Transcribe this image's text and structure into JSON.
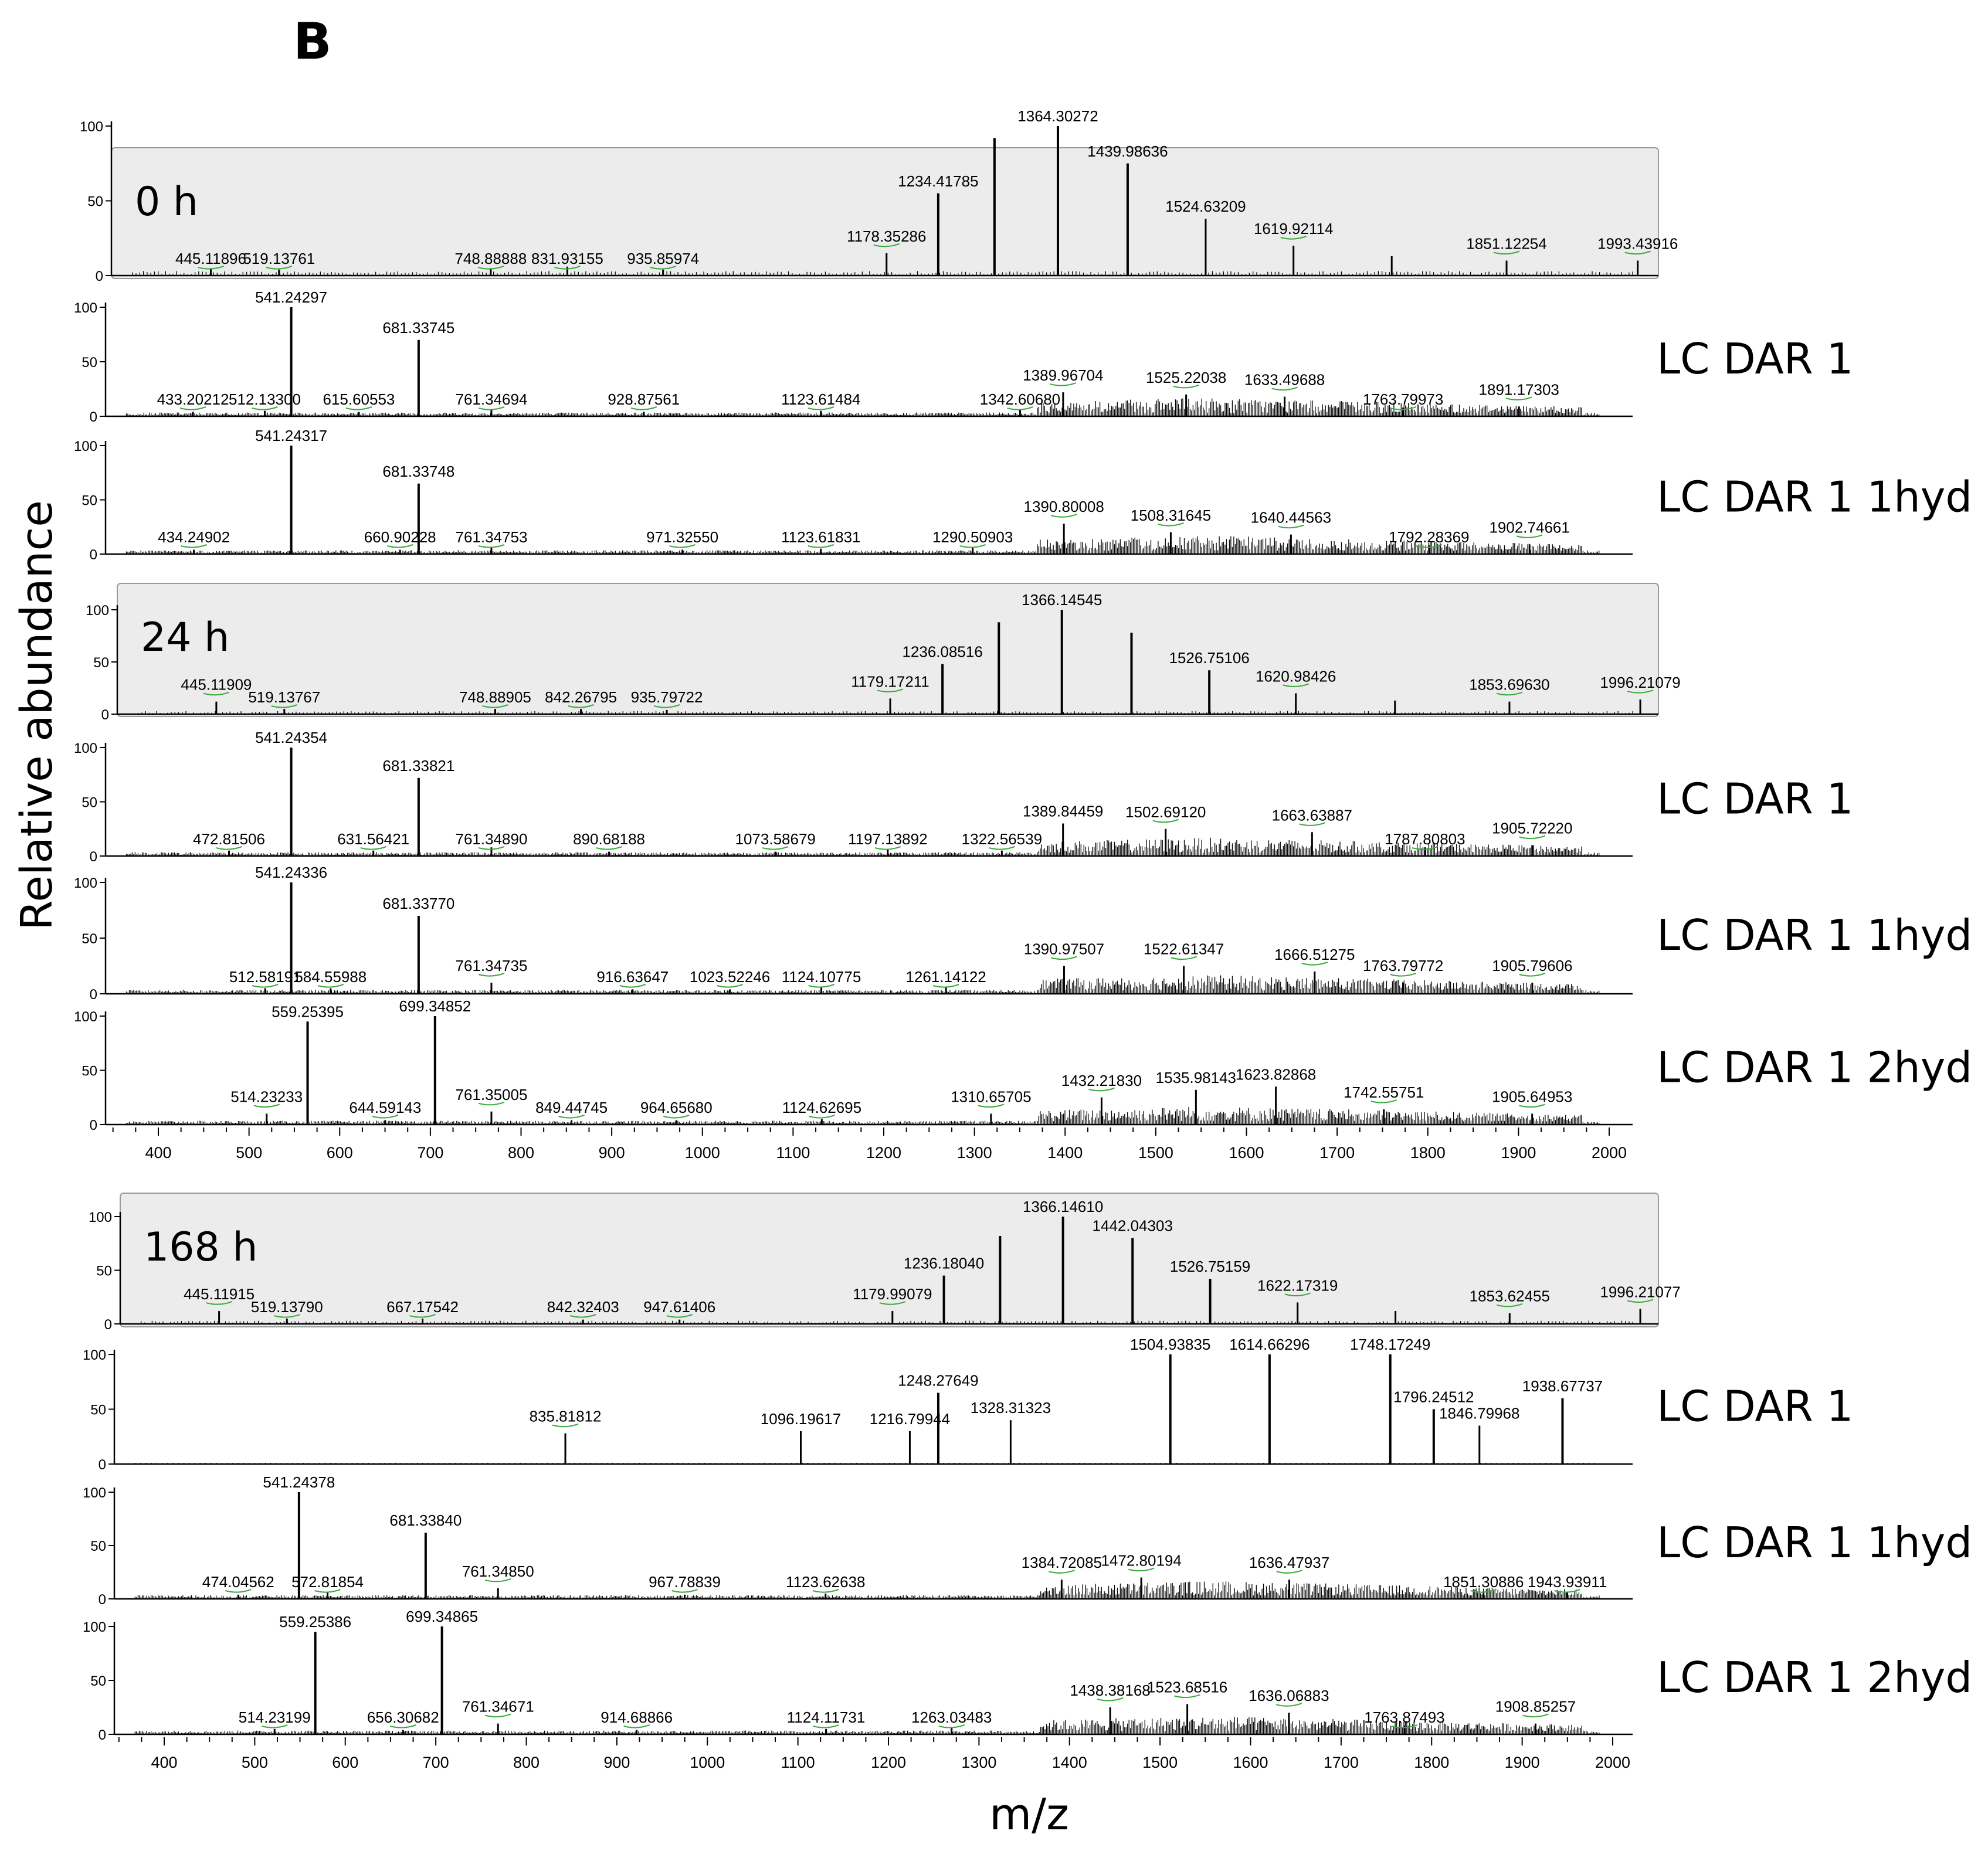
{
  "figure": {
    "panel_letter": "B",
    "y_axis_label": "Relative abundance",
    "x_axis_label": "m/z"
  },
  "chart_data": [
    {
      "type": "spectrum",
      "group": "0 h",
      "time_label": "0 h",
      "label": "",
      "shaded": true,
      "xlim": [
        350,
        2000
      ],
      "ylim": [
        0,
        100
      ],
      "yticks": [
        0,
        50,
        100
      ],
      "peaks": [
        {
          "mz": 445.11896,
          "rel": 5,
          "label": "445.11896"
        },
        {
          "mz": 519.13761,
          "rel": 4,
          "label": "519.13761"
        },
        {
          "mz": 748.88888,
          "rel": 5,
          "label": "748.88888"
        },
        {
          "mz": 831.93155,
          "rel": 6,
          "label": "831.93155"
        },
        {
          "mz": 935.85974,
          "rel": 4,
          "label": "935.85974"
        },
        {
          "mz": 1178.35286,
          "rel": 15,
          "label": "1178.35286"
        },
        {
          "mz": 1234.41785,
          "rel": 55,
          "label": "1234.41785"
        },
        {
          "mz": 1295.5,
          "rel": 92,
          "label": ""
        },
        {
          "mz": 1364.30272,
          "rel": 100,
          "label": "1364.30272"
        },
        {
          "mz": 1439.98636,
          "rel": 75,
          "label": "1439.98636"
        },
        {
          "mz": 1524.63209,
          "rel": 38,
          "label": "1524.63209"
        },
        {
          "mz": 1619.92114,
          "rel": 20,
          "label": "1619.92114"
        },
        {
          "mz": 1726.5,
          "rel": 13,
          "label": ""
        },
        {
          "mz": 1851.12254,
          "rel": 10,
          "label": "1851.12254"
        },
        {
          "mz": 1993.43916,
          "rel": 10,
          "label": "1993.43916"
        }
      ]
    },
    {
      "type": "spectrum",
      "group": "0 h",
      "time_label": "",
      "label": "LC DAR 1",
      "shaded": false,
      "xlim": [
        350,
        2000
      ],
      "ylim": [
        0,
        100
      ],
      "yticks": [
        0,
        50,
        100
      ],
      "peaks": [
        {
          "mz": 433.20212,
          "rel": 4,
          "label": "433.20212"
        },
        {
          "mz": 512.133,
          "rel": 5,
          "label": "512.13300"
        },
        {
          "mz": 541.24297,
          "rel": 100,
          "label": "541.24297"
        },
        {
          "mz": 615.60553,
          "rel": 4,
          "label": "615.60553"
        },
        {
          "mz": 681.33745,
          "rel": 70,
          "label": "681.33745"
        },
        {
          "mz": 761.34694,
          "rel": 6,
          "label": "761.34694"
        },
        {
          "mz": 928.87561,
          "rel": 4,
          "label": "928.87561"
        },
        {
          "mz": 1123.61484,
          "rel": 5,
          "label": "1123.61484"
        },
        {
          "mz": 1342.6068,
          "rel": 6,
          "label": "1342.60680"
        },
        {
          "mz": 1389.96704,
          "rel": 22,
          "label": "1389.96704"
        },
        {
          "mz": 1525.22038,
          "rel": 20,
          "label": "1525.22038"
        },
        {
          "mz": 1633.49688,
          "rel": 18,
          "label": "1633.49688"
        },
        {
          "mz": 1763.79973,
          "rel": 8,
          "label": "1763.79973"
        },
        {
          "mz": 1891.17303,
          "rel": 9,
          "label": "1891.17303"
        }
      ]
    },
    {
      "type": "spectrum",
      "group": "0 h",
      "time_label": "",
      "label": "LC DAR 1 1hyd",
      "shaded": false,
      "xlim": [
        350,
        2000
      ],
      "ylim": [
        0,
        100
      ],
      "yticks": [
        0,
        50,
        100
      ],
      "peaks": [
        {
          "mz": 434.24902,
          "rel": 4,
          "label": "434.24902"
        },
        {
          "mz": 541.24317,
          "rel": 100,
          "label": "541.24317"
        },
        {
          "mz": 660.90228,
          "rel": 4,
          "label": "660.90228"
        },
        {
          "mz": 681.33748,
          "rel": 65,
          "label": "681.33748"
        },
        {
          "mz": 761.34753,
          "rel": 6,
          "label": "761.34753"
        },
        {
          "mz": 971.3255,
          "rel": 4,
          "label": "971.32550"
        },
        {
          "mz": 1123.61831,
          "rel": 5,
          "label": "1123.61831"
        },
        {
          "mz": 1290.50903,
          "rel": 6,
          "label": "1290.50903"
        },
        {
          "mz": 1390.80008,
          "rel": 28,
          "label": "1390.80008"
        },
        {
          "mz": 1508.31645,
          "rel": 20,
          "label": "1508.31645"
        },
        {
          "mz": 1640.44563,
          "rel": 18,
          "label": "1640.44563"
        },
        {
          "mz": 1792.28369,
          "rel": 8,
          "label": "1792.28369"
        },
        {
          "mz": 1902.74661,
          "rel": 9,
          "label": "1902.74661"
        }
      ]
    },
    {
      "type": "spectrum",
      "group": "24 h",
      "time_label": "24 h",
      "label": "",
      "shaded": true,
      "xlim": [
        350,
        2000
      ],
      "ylim": [
        0,
        100
      ],
      "yticks": [
        0,
        50,
        100
      ],
      "peaks": [
        {
          "mz": 445.11909,
          "rel": 12,
          "label": "445.11909"
        },
        {
          "mz": 519.13767,
          "rel": 5,
          "label": "519.13767"
        },
        {
          "mz": 748.88905,
          "rel": 5,
          "label": "748.88905"
        },
        {
          "mz": 842.26795,
          "rel": 5,
          "label": "842.26795"
        },
        {
          "mz": 935.79722,
          "rel": 4,
          "label": "935.79722"
        },
        {
          "mz": 1179.17211,
          "rel": 15,
          "label": "1179.17211"
        },
        {
          "mz": 1236.08516,
          "rel": 48,
          "label": "1236.08516"
        },
        {
          "mz": 1297.5,
          "rel": 88,
          "label": ""
        },
        {
          "mz": 1366.14545,
          "rel": 100,
          "label": "1366.14545"
        },
        {
          "mz": 1442.0,
          "rel": 78,
          "label": ""
        },
        {
          "mz": 1526.75106,
          "rel": 42,
          "label": "1526.75106"
        },
        {
          "mz": 1620.98426,
          "rel": 20,
          "label": "1620.98426"
        },
        {
          "mz": 1729.0,
          "rel": 13,
          "label": ""
        },
        {
          "mz": 1853.6963,
          "rel": 12,
          "label": "1853.69630"
        },
        {
          "mz": 1996.21079,
          "rel": 14,
          "label": "1996.21079"
        }
      ]
    },
    {
      "type": "spectrum",
      "group": "24 h",
      "time_label": "",
      "label": "LC DAR 1",
      "shaded": false,
      "xlim": [
        350,
        2000
      ],
      "ylim": [
        0,
        100
      ],
      "yticks": [
        0,
        50,
        100
      ],
      "peaks": [
        {
          "mz": 472.81506,
          "rel": 5,
          "label": "472.81506"
        },
        {
          "mz": 541.24354,
          "rel": 100,
          "label": "541.24354"
        },
        {
          "mz": 631.56421,
          "rel": 5,
          "label": "631.56421"
        },
        {
          "mz": 681.33821,
          "rel": 72,
          "label": "681.33821"
        },
        {
          "mz": 761.3489,
          "rel": 8,
          "label": "761.34890"
        },
        {
          "mz": 890.68188,
          "rel": 4,
          "label": "890.68188"
        },
        {
          "mz": 1073.58679,
          "rel": 4,
          "label": "1073.58679"
        },
        {
          "mz": 1197.13892,
          "rel": 6,
          "label": "1197.13892"
        },
        {
          "mz": 1322.56539,
          "rel": 5,
          "label": "1322.56539"
        },
        {
          "mz": 1389.84459,
          "rel": 30,
          "label": "1389.84459"
        },
        {
          "mz": 1502.6912,
          "rel": 25,
          "label": "1502.69120"
        },
        {
          "mz": 1663.63887,
          "rel": 22,
          "label": "1663.63887"
        },
        {
          "mz": 1787.80803,
          "rel": 8,
          "label": "1787.80803"
        },
        {
          "mz": 1905.7222,
          "rel": 10,
          "label": "1905.72220"
        }
      ]
    },
    {
      "type": "spectrum",
      "group": "24 h",
      "time_label": "",
      "label": "LC DAR 1 1hyd",
      "shaded": false,
      "xlim": [
        350,
        2000
      ],
      "ylim": [
        0,
        100
      ],
      "yticks": [
        0,
        50,
        100
      ],
      "peaks": [
        {
          "mz": 512.58191,
          "rel": 5,
          "label": "512.58191"
        },
        {
          "mz": 541.24336,
          "rel": 100,
          "label": "541.24336"
        },
        {
          "mz": 584.55988,
          "rel": 5,
          "label": "584.55988"
        },
        {
          "mz": 681.3377,
          "rel": 70,
          "label": "681.33770"
        },
        {
          "mz": 761.34735,
          "rel": 10,
          "label": "761.34735"
        },
        {
          "mz": 916.63647,
          "rel": 4,
          "label": "916.63647"
        },
        {
          "mz": 1023.52246,
          "rel": 4,
          "label": "1023.52246"
        },
        {
          "mz": 1124.10775,
          "rel": 6,
          "label": "1124.10775"
        },
        {
          "mz": 1261.14122,
          "rel": 6,
          "label": "1261.14122"
        },
        {
          "mz": 1390.97507,
          "rel": 25,
          "label": "1390.97507"
        },
        {
          "mz": 1522.61347,
          "rel": 25,
          "label": "1522.61347"
        },
        {
          "mz": 1666.51275,
          "rel": 20,
          "label": "1666.51275"
        },
        {
          "mz": 1763.79772,
          "rel": 10,
          "label": "1763.79772"
        },
        {
          "mz": 1905.79606,
          "rel": 10,
          "label": "1905.79606"
        }
      ]
    },
    {
      "type": "spectrum",
      "group": "24 h",
      "time_label": "",
      "label": "LC DAR 1 2hyd",
      "shaded": false,
      "xlim": [
        350,
        2000
      ],
      "ylim": [
        0,
        100
      ],
      "yticks": [
        0,
        50,
        100
      ],
      "peaks": [
        {
          "mz": 514.23233,
          "rel": 10,
          "label": "514.23233"
        },
        {
          "mz": 559.25395,
          "rel": 95,
          "label": "559.25395"
        },
        {
          "mz": 644.59143,
          "rel": 4,
          "label": "644.59143"
        },
        {
          "mz": 699.34852,
          "rel": 100,
          "label": "699.34852"
        },
        {
          "mz": 761.35005,
          "rel": 12,
          "label": "761.35005"
        },
        {
          "mz": 849.44745,
          "rel": 4,
          "label": "849.44745"
        },
        {
          "mz": 964.6568,
          "rel": 4,
          "label": "964.65680"
        },
        {
          "mz": 1124.62695,
          "rel": 5,
          "label": "1124.62695"
        },
        {
          "mz": 1310.65705,
          "rel": 10,
          "label": "1310.65705"
        },
        {
          "mz": 1432.2183,
          "rel": 25,
          "label": "1432.21830"
        },
        {
          "mz": 1535.98143,
          "rel": 32,
          "label": "1535.98143"
        },
        {
          "mz": 1623.82868,
          "rel": 35,
          "label": "1623.82868"
        },
        {
          "mz": 1742.55751,
          "rel": 14,
          "label": "1742.55751"
        },
        {
          "mz": 1905.64953,
          "rel": 10,
          "label": "1905.64953"
        }
      ]
    },
    {
      "type": "spectrum",
      "group": "168 h",
      "time_label": "168 h",
      "label": "",
      "shaded": true,
      "xlim": [
        350,
        2000
      ],
      "ylim": [
        0,
        100
      ],
      "yticks": [
        0,
        50,
        100
      ],
      "peaks": [
        {
          "mz": 445.11915,
          "rel": 12,
          "label": "445.11915"
        },
        {
          "mz": 519.1379,
          "rel": 5,
          "label": "519.13790"
        },
        {
          "mz": 667.17542,
          "rel": 5,
          "label": "667.17542"
        },
        {
          "mz": 842.32403,
          "rel": 4,
          "label": "842.32403"
        },
        {
          "mz": 947.61406,
          "rel": 4,
          "label": "947.61406"
        },
        {
          "mz": 1179.99079,
          "rel": 12,
          "label": "1179.99079"
        },
        {
          "mz": 1236.1804,
          "rel": 45,
          "label": "1236.18040"
        },
        {
          "mz": 1297.5,
          "rel": 82,
          "label": ""
        },
        {
          "mz": 1366.1461,
          "rel": 100,
          "label": "1366.14610"
        },
        {
          "mz": 1442.04303,
          "rel": 80,
          "label": "1442.04303"
        },
        {
          "mz": 1526.75159,
          "rel": 42,
          "label": "1526.75159"
        },
        {
          "mz": 1622.17319,
          "rel": 20,
          "label": "1622.17319"
        },
        {
          "mz": 1729.0,
          "rel": 12,
          "label": ""
        },
        {
          "mz": 1853.62455,
          "rel": 10,
          "label": "1853.62455"
        },
        {
          "mz": 1996.21077,
          "rel": 14,
          "label": "1996.21077"
        }
      ]
    },
    {
      "type": "spectrum",
      "group": "168 h",
      "time_label": "",
      "label": "LC DAR 1",
      "shaded": false,
      "xlim": [
        350,
        2000
      ],
      "ylim": [
        0,
        100
      ],
      "yticks": [
        0,
        50,
        100
      ],
      "peaks": [
        {
          "mz": 835.81812,
          "rel": 28,
          "label": "835.81812"
        },
        {
          "mz": 1096.19617,
          "rel": 30,
          "label": "1096.19617"
        },
        {
          "mz": 1216.79944,
          "rel": 30,
          "label": "1216.79944"
        },
        {
          "mz": 1248.27649,
          "rel": 65,
          "label": "1248.27649"
        },
        {
          "mz": 1328.31323,
          "rel": 40,
          "label": "1328.31323"
        },
        {
          "mz": 1504.93835,
          "rel": 100,
          "label": "1504.93835"
        },
        {
          "mz": 1614.66296,
          "rel": 100,
          "label": "1614.66296"
        },
        {
          "mz": 1748.17249,
          "rel": 100,
          "label": "1748.17249"
        },
        {
          "mz": 1796.24512,
          "rel": 50,
          "label": "1796.24512"
        },
        {
          "mz": 1846.79968,
          "rel": 35,
          "label": "1846.79968"
        },
        {
          "mz": 1938.67737,
          "rel": 60,
          "label": "1938.67737"
        }
      ]
    },
    {
      "type": "spectrum",
      "group": "168 h",
      "time_label": "",
      "label": "LC DAR 1 1hyd",
      "shaded": false,
      "xlim": [
        350,
        2000
      ],
      "ylim": [
        0,
        100
      ],
      "yticks": [
        0,
        50,
        100
      ],
      "peaks": [
        {
          "mz": 474.04562,
          "rel": 4,
          "label": "474.04562"
        },
        {
          "mz": 541.24378,
          "rel": 100,
          "label": "541.24378"
        },
        {
          "mz": 572.81854,
          "rel": 6,
          "label": "572.81854"
        },
        {
          "mz": 681.3384,
          "rel": 62,
          "label": "681.33840"
        },
        {
          "mz": 761.3485,
          "rel": 10,
          "label": "761.34850"
        },
        {
          "mz": 967.78839,
          "rel": 4,
          "label": "967.78839"
        },
        {
          "mz": 1123.62638,
          "rel": 5,
          "label": "1123.62638"
        },
        {
          "mz": 1384.72085,
          "rel": 18,
          "label": "1384.72085"
        },
        {
          "mz": 1472.80194,
          "rel": 20,
          "label": "1472.80194"
        },
        {
          "mz": 1636.47937,
          "rel": 18,
          "label": "1636.47937"
        },
        {
          "mz": 1851.30886,
          "rel": 6,
          "label": "1851.30886"
        },
        {
          "mz": 1943.93911,
          "rel": 6,
          "label": "1943.93911"
        }
      ]
    },
    {
      "type": "spectrum",
      "group": "168 h",
      "time_label": "",
      "label": "LC DAR 1 2hyd",
      "shaded": false,
      "xlim": [
        350,
        2000
      ],
      "ylim": [
        0,
        100
      ],
      "yticks": [
        0,
        50,
        100
      ],
      "peaks": [
        {
          "mz": 514.23199,
          "rel": 5,
          "label": "514.23199"
        },
        {
          "mz": 559.25386,
          "rel": 95,
          "label": "559.25386"
        },
        {
          "mz": 656.30682,
          "rel": 4,
          "label": "656.30682"
        },
        {
          "mz": 699.34865,
          "rel": 100,
          "label": "699.34865"
        },
        {
          "mz": 761.34671,
          "rel": 10,
          "label": "761.34671"
        },
        {
          "mz": 914.68866,
          "rel": 4,
          "label": "914.68866"
        },
        {
          "mz": 1124.11731,
          "rel": 5,
          "label": "1124.11731"
        },
        {
          "mz": 1263.03483,
          "rel": 6,
          "label": "1263.03483"
        },
        {
          "mz": 1438.38168,
          "rel": 25,
          "label": "1438.38168"
        },
        {
          "mz": 1523.68516,
          "rel": 28,
          "label": "1523.68516"
        },
        {
          "mz": 1636.06883,
          "rel": 20,
          "label": "1636.06883"
        },
        {
          "mz": 1763.87493,
          "rel": 8,
          "label": "1763.87493"
        },
        {
          "mz": 1908.85257,
          "rel": 10,
          "label": "1908.85257"
        }
      ]
    }
  ],
  "x_axis": {
    "min": 350,
    "max": 2000,
    "ticks": [
      400,
      500,
      600,
      700,
      800,
      900,
      1000,
      1100,
      1200,
      1300,
      1400,
      1500,
      1600,
      1700,
      1800,
      1900,
      2000
    ],
    "tick_labels": [
      "400",
      "500",
      "600",
      "700",
      "800",
      "900",
      "1000",
      "1100",
      "1200",
      "1300",
      "1400",
      "1500",
      "1600",
      "1700",
      "1800",
      "1900",
      "2000"
    ]
  },
  "style": {
    "panel_bg_shaded": "#ececec",
    "peak_color": "#000000",
    "leader_color": "#3caa3c",
    "axis_color": "#000000"
  }
}
